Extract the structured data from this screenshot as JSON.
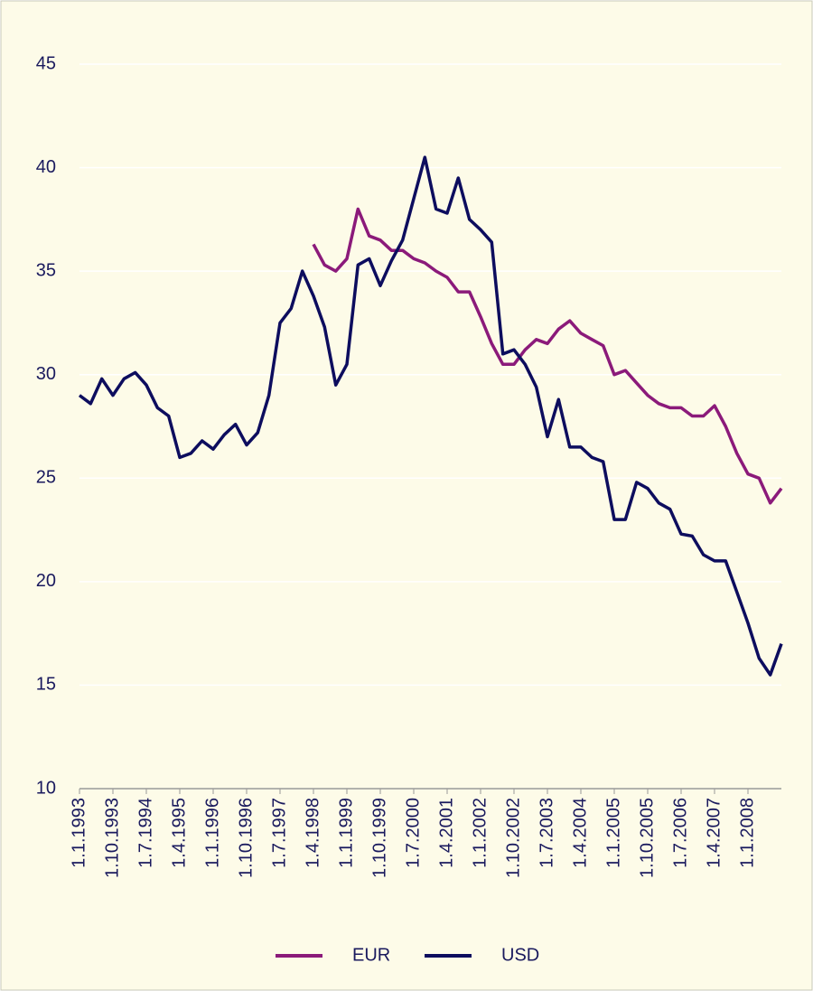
{
  "chart_data": {
    "type": "line",
    "categories": [
      "1.1.1993",
      null,
      null,
      "1.10.1993",
      null,
      null,
      "1.7.1994",
      null,
      null,
      "1.4.1995",
      null,
      null,
      "1.1.1996",
      null,
      null,
      "1.10.1996",
      null,
      null,
      "1.7.1997",
      null,
      null,
      "1.4.1998",
      null,
      null,
      "1.1.1999",
      null,
      null,
      "1.10.1999",
      null,
      null,
      "1.7.2000",
      null,
      null,
      "1.4.2001",
      null,
      null,
      "1.1.2002",
      null,
      null,
      "1.10.2002",
      null,
      null,
      "1.7.2003",
      null,
      null,
      "1.4.2004",
      null,
      null,
      "1.1.2005",
      null,
      null,
      "1.10.2005",
      null,
      null,
      "1.7.2006",
      null,
      null,
      "1.4.2007",
      null,
      null,
      "1.1.2008",
      null,
      null,
      null
    ],
    "series": [
      {
        "name": "EUR",
        "color": "#8b1a7a",
        "values": [
          null,
          null,
          null,
          null,
          null,
          null,
          null,
          null,
          null,
          null,
          null,
          null,
          null,
          null,
          null,
          null,
          null,
          null,
          null,
          null,
          null,
          36.3,
          35.3,
          35.0,
          35.6,
          38.0,
          36.7,
          36.5,
          36.0,
          36.0,
          35.6,
          35.4,
          35.0,
          34.7,
          34.0,
          34.0,
          32.8,
          31.5,
          30.5,
          30.5,
          31.2,
          31.7,
          31.5,
          32.2,
          32.6,
          32.0,
          31.7,
          31.4,
          30.0,
          30.2,
          29.6,
          29.0,
          28.6,
          28.4,
          28.4,
          28.0,
          28.0,
          28.5,
          27.5,
          26.2,
          25.2,
          25.0,
          23.8,
          24.5
        ]
      },
      {
        "name": "USD",
        "color": "#0d0d5e",
        "values": [
          29.0,
          28.6,
          29.8,
          29.0,
          29.8,
          30.1,
          29.5,
          28.4,
          28.0,
          26.0,
          26.2,
          26.8,
          26.4,
          27.1,
          27.6,
          26.6,
          27.2,
          29.0,
          32.5,
          33.2,
          35.0,
          33.8,
          32.3,
          29.5,
          30.5,
          35.3,
          35.6,
          34.3,
          35.5,
          36.5,
          38.5,
          40.5,
          38.0,
          37.8,
          39.5,
          37.5,
          37.0,
          36.4,
          31.0,
          31.2,
          30.5,
          29.4,
          27.0,
          28.8,
          26.5,
          26.5,
          26.0,
          25.8,
          23.0,
          23.0,
          24.8,
          24.5,
          23.8,
          23.5,
          22.3,
          22.2,
          21.3,
          21.0,
          21.0,
          19.5,
          18.0,
          16.3,
          15.5,
          17.0
        ]
      }
    ],
    "ylim": [
      10,
      45
    ],
    "yticks": [
      10,
      15,
      20,
      25,
      30,
      35,
      40,
      45
    ],
    "grid": true,
    "legend": "bottom"
  }
}
